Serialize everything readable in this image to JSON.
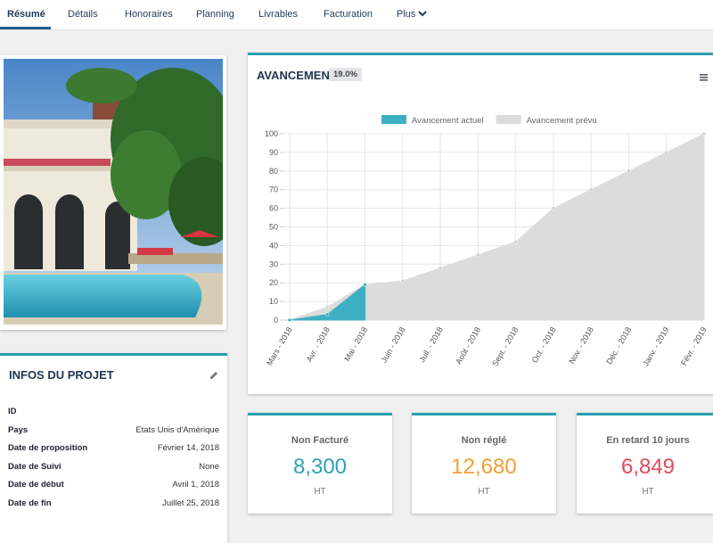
{
  "tabs": [
    "Résumé",
    "Détails",
    "Honoraires",
    "Planning",
    "Livrables",
    "Facturation",
    "Plus"
  ],
  "active_tab": 0,
  "project_info": {
    "title": "INFOS DU PROJET",
    "rows": [
      {
        "label": "ID"
      },
      {
        "label": "Pays",
        "value": "Etats Unis d'Amérique"
      },
      {
        "label": "Date de proposition",
        "value": "Février 14, 2018"
      },
      {
        "label": "Date de Suivi",
        "value": "None"
      },
      {
        "label": "Date de début",
        "value": "Avril 1, 2018"
      },
      {
        "label": "Date de fin",
        "value": "Juillet 25, 2018"
      }
    ]
  },
  "progress": {
    "title": "AVANCEMENT",
    "badge": "19.0%",
    "chart": {
      "type": "area",
      "categories": [
        "Mars - 2018",
        "Avr. - 2018",
        "Mai - 2018",
        "Juin - 2018",
        "Juil. - 2018",
        "Août - 2018",
        "Sept. - 2018",
        "Oct. - 2018",
        "Nov. - 2018",
        "Déc. - 2018",
        "Janv. - 2019",
        "Févr. - 2019"
      ],
      "series": [
        {
          "name": "Avancement actuel",
          "color": "#3cb0c2",
          "values": [
            0,
            3,
            19,
            null,
            null,
            null,
            null,
            null,
            null,
            null,
            null,
            null
          ]
        },
        {
          "name": "Avancement prévu",
          "color": "#dcdcdc",
          "values": [
            0,
            7,
            19,
            21,
            28,
            35,
            42,
            60,
            70,
            80,
            90,
            100
          ]
        }
      ],
      "ylim": [
        0,
        100
      ],
      "yticks": [
        0,
        10,
        20,
        30,
        40,
        50,
        60,
        70,
        80,
        90,
        100
      ],
      "grid": true,
      "legend": "top"
    }
  },
  "kpis": [
    {
      "title": "Non Facturé",
      "value": "8,300",
      "unit": "HT",
      "color": "#2aa3b3"
    },
    {
      "title": "Non réglé",
      "value": "12,680",
      "unit": "HT",
      "color": "#f0a032"
    },
    {
      "title": "En retard 10 jours",
      "value": "6,849",
      "unit": "HT",
      "color": "#e04a5c"
    }
  ]
}
